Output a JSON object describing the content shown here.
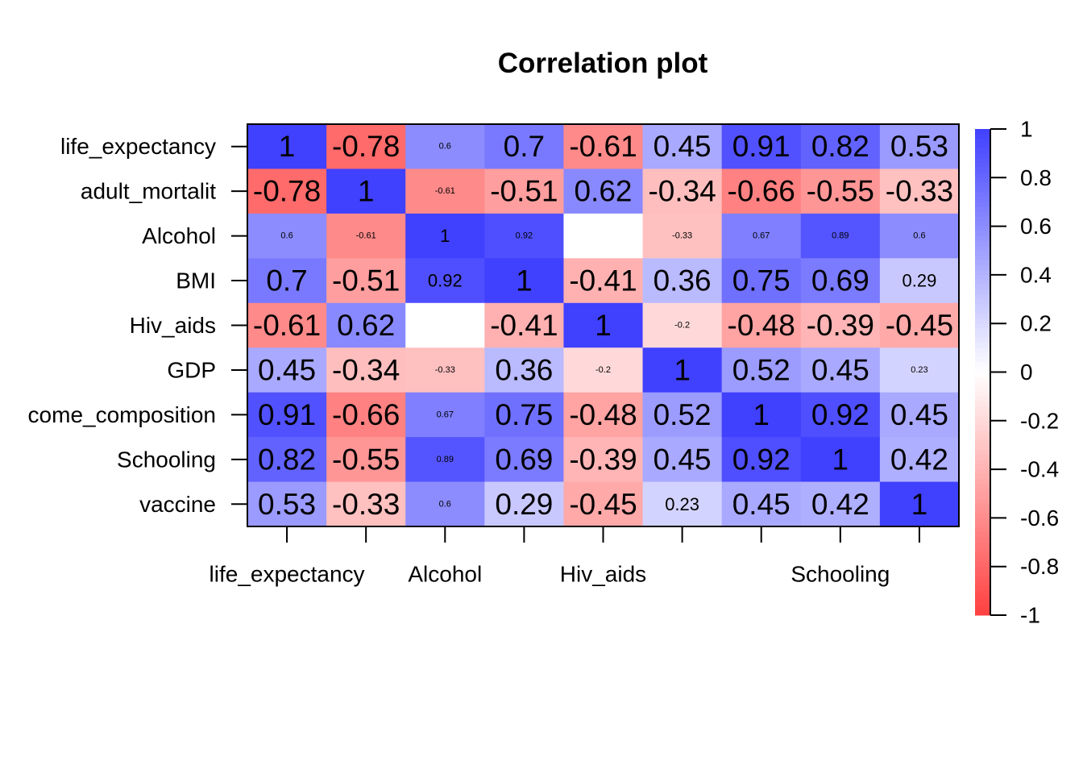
{
  "chart_data": {
    "type": "heatmap",
    "title": "Correlation plot",
    "xlabel": "",
    "ylabel": "",
    "row_labels": [
      "life_expectancy",
      "adult_mortalit",
      "Alcohol",
      "BMI",
      "Hiv_aids",
      "GDP",
      "come_composition",
      "Schooling",
      "vaccine"
    ],
    "column_tick_labels": [
      "life_expectancy",
      "Alcohol",
      "Hiv_aids",
      "Schooling"
    ],
    "column_tick_label_indices": [
      0,
      2,
      4,
      7
    ],
    "cell_labels": [
      [
        "1",
        "-0.78",
        "0.6",
        "0.7",
        "-0.61",
        "0.45",
        "0.91",
        "0.82",
        "0.53"
      ],
      [
        "-0.78",
        "1",
        "-0.61",
        "-0.51",
        "0.62",
        "-0.34",
        "-0.66",
        "-0.55",
        "-0.33"
      ],
      [
        "0.6",
        "-0.61",
        "1",
        "0.92",
        "",
        "-0.33",
        "0.67",
        "0.89",
        "0.6"
      ],
      [
        "0.7",
        "-0.51",
        "0.92",
        "1",
        "-0.41",
        "0.36",
        "0.75",
        "0.69",
        "0.29"
      ],
      [
        "-0.61",
        "0.62",
        "",
        "-0.41",
        "1",
        "-0.2",
        "-0.48",
        "-0.39",
        "-0.45"
      ],
      [
        "0.45",
        "-0.34",
        "-0.33",
        "0.36",
        "-0.2",
        "1",
        "0.52",
        "0.45",
        "0.23"
      ],
      [
        "0.91",
        "-0.66",
        "0.67",
        "0.75",
        "-0.48",
        "0.52",
        "1",
        "0.92",
        "0.45"
      ],
      [
        "0.82",
        "-0.55",
        "0.89",
        "0.69",
        "-0.39",
        "0.45",
        "0.92",
        "1",
        "0.42"
      ],
      [
        "0.53",
        "-0.33",
        "0.6",
        "0.29",
        "-0.45",
        "0.23",
        "0.45",
        "0.42",
        "1"
      ]
    ],
    "values": [
      [
        1,
        -0.78,
        0.6,
        0.7,
        -0.61,
        0.45,
        0.91,
        0.82,
        0.53
      ],
      [
        -0.78,
        1,
        -0.61,
        -0.51,
        0.62,
        -0.34,
        -0.66,
        -0.55,
        -0.33
      ],
      [
        0.6,
        -0.61,
        1,
        0.92,
        0,
        -0.33,
        0.67,
        0.89,
        0.6
      ],
      [
        0.7,
        -0.51,
        0.92,
        1,
        -0.41,
        0.36,
        0.75,
        0.69,
        0.29
      ],
      [
        -0.61,
        0.62,
        0,
        -0.41,
        1,
        -0.2,
        -0.48,
        -0.39,
        -0.45
      ],
      [
        0.45,
        -0.34,
        -0.33,
        0.36,
        -0.2,
        1,
        0.52,
        0.45,
        0.23
      ],
      [
        0.91,
        -0.66,
        0.67,
        0.75,
        -0.48,
        0.52,
        1,
        0.92,
        0.45
      ],
      [
        0.82,
        -0.55,
        0.89,
        0.69,
        -0.39,
        0.45,
        0.92,
        1,
        0.42
      ],
      [
        0.53,
        -0.33,
        0.6,
        0.29,
        -0.45,
        0.23,
        0.45,
        0.42,
        1
      ]
    ],
    "small_label_cells": [
      [
        0,
        2
      ],
      [
        1,
        2
      ],
      [
        2,
        0
      ],
      [
        2,
        1
      ],
      [
        2,
        3
      ],
      [
        2,
        5
      ],
      [
        2,
        6
      ],
      [
        2,
        7
      ],
      [
        2,
        8
      ],
      [
        4,
        5
      ],
      [
        5,
        2
      ],
      [
        5,
        4
      ],
      [
        5,
        8
      ],
      [
        6,
        2
      ],
      [
        7,
        2
      ],
      [
        8,
        2
      ]
    ],
    "medium_label_cells": [
      [
        2,
        2
      ],
      [
        3,
        2
      ],
      [
        3,
        8
      ],
      [
        8,
        5
      ]
    ],
    "color_scale": {
      "min": -1,
      "max": 1,
      "neg_color": "#ff4040",
      "mid_color": "#ffffff",
      "pos_color": "#4040ff",
      "ticks": [
        "1",
        "0.8",
        "0.6",
        "0.4",
        "0.2",
        "0",
        "-0.2",
        "-0.4",
        "-0.6",
        "-0.8",
        "-1"
      ],
      "tick_values": [
        1,
        0.8,
        0.6,
        0.4,
        0.2,
        0,
        -0.2,
        -0.4,
        -0.6,
        -0.8,
        -1
      ]
    },
    "legend": "right",
    "grid": false
  }
}
